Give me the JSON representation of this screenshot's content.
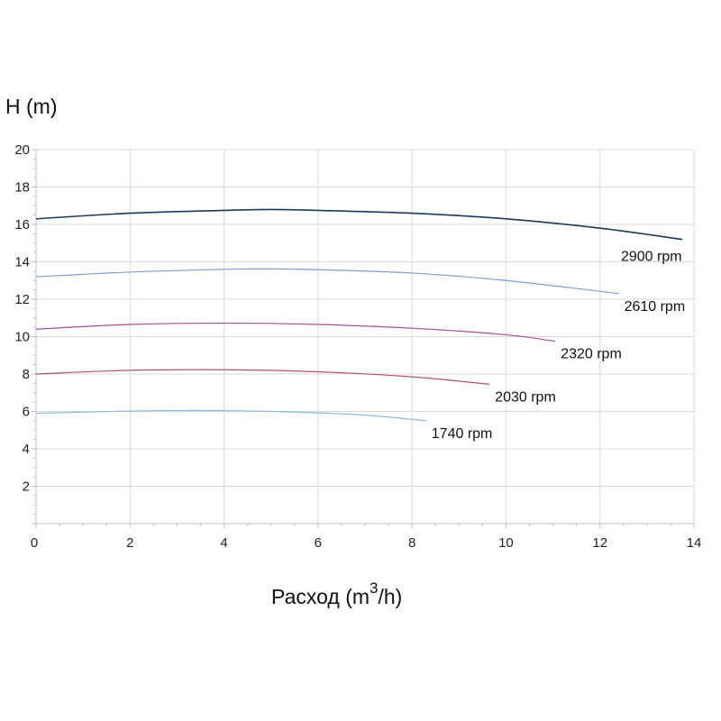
{
  "chart_data": {
    "type": "line",
    "ylabel": "H (m)",
    "xlabel_main": "Расход (m",
    "xlabel_sup": "3",
    "xlabel_tail": "/h)",
    "xlim": [
      0,
      14
    ],
    "ylim": [
      0,
      20
    ],
    "x_ticks": [
      0,
      2,
      4,
      6,
      8,
      10,
      12,
      14
    ],
    "y_ticks": [
      2,
      4,
      6,
      8,
      10,
      12,
      14,
      16,
      18,
      20
    ],
    "grid": true,
    "series": [
      {
        "name": "2900 rpm",
        "color": "#1b3a57",
        "points": [
          [
            0,
            16.3
          ],
          [
            2,
            16.6
          ],
          [
            4,
            16.75
          ],
          [
            5,
            16.8
          ],
          [
            6,
            16.75
          ],
          [
            8,
            16.6
          ],
          [
            10,
            16.3
          ],
          [
            12,
            15.8
          ],
          [
            13.75,
            15.2
          ]
        ]
      },
      {
        "name": "2610 rpm",
        "color": "#7f9fc8",
        "points": [
          [
            0,
            13.2
          ],
          [
            2,
            13.45
          ],
          [
            4,
            13.6
          ],
          [
            5,
            13.62
          ],
          [
            6,
            13.58
          ],
          [
            8,
            13.4
          ],
          [
            10,
            13.0
          ],
          [
            12.4,
            12.3
          ]
        ]
      },
      {
        "name": "2320 rpm",
        "color": "#a0509a",
        "points": [
          [
            0,
            10.4
          ],
          [
            2,
            10.65
          ],
          [
            4,
            10.72
          ],
          [
            6,
            10.65
          ],
          [
            8,
            10.45
          ],
          [
            10,
            10.1
          ],
          [
            11.05,
            9.75
          ]
        ]
      },
      {
        "name": "2030 rpm",
        "color": "#b5506b",
        "points": [
          [
            0,
            8.0
          ],
          [
            2,
            8.2
          ],
          [
            4,
            8.23
          ],
          [
            6,
            8.12
          ],
          [
            8,
            7.85
          ],
          [
            9.65,
            7.45
          ]
        ]
      },
      {
        "name": "1740 rpm",
        "color": "#8ab8e0",
        "points": [
          [
            0,
            5.9
          ],
          [
            2,
            6.02
          ],
          [
            3.5,
            6.05
          ],
          [
            5,
            6.0
          ],
          [
            6,
            5.92
          ],
          [
            7,
            5.8
          ],
          [
            8.3,
            5.5
          ]
        ]
      }
    ]
  }
}
